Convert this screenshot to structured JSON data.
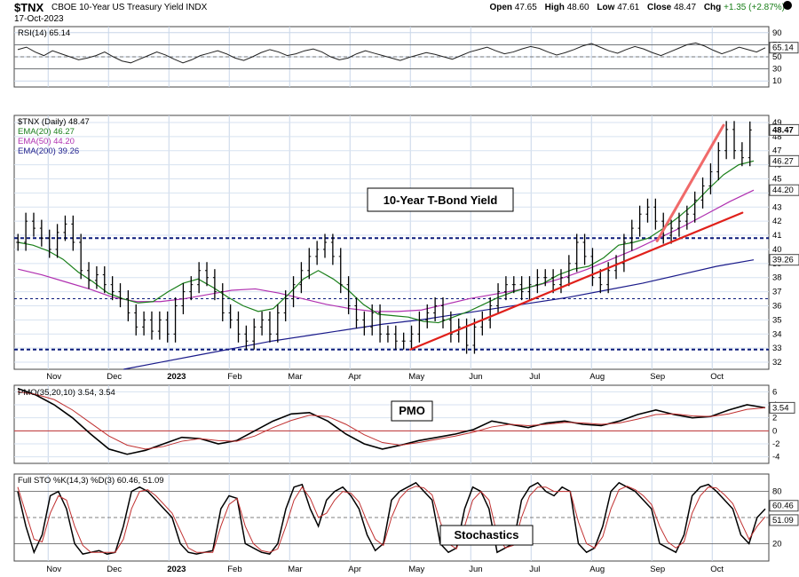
{
  "header": {
    "symbol": "$TNX",
    "description": "CBOE 10-Year US Treasury Yield INDX",
    "date": "17-Oct-2023",
    "open_label": "Open",
    "open": "47.65",
    "high_label": "High",
    "high": "48.60",
    "low_label": "Low",
    "low": "47.61",
    "close_label": "Close",
    "close": "48.47",
    "chg_label": "Chg",
    "chg": "+1.35 (+2.87%)"
  },
  "chart_data": [
    {
      "type": "line",
      "name": "rsi-panel",
      "legend": "RSI(14) 65.14",
      "value_tag": "65.14",
      "yticks": [
        "90",
        "70",
        "50",
        "30",
        "10"
      ],
      "ylim": [
        0,
        100
      ],
      "reference_lines": [
        70,
        50,
        30
      ],
      "values": [
        62,
        66,
        58,
        52,
        60,
        55,
        50,
        45,
        48,
        52,
        58,
        50,
        43,
        40,
        46,
        52,
        58,
        53,
        46,
        40,
        45,
        52,
        56,
        60,
        55,
        48,
        44,
        50,
        57,
        62,
        58,
        52,
        55,
        60,
        63,
        58,
        50,
        45,
        48,
        55,
        60,
        56,
        52,
        48,
        44,
        49,
        53,
        57,
        54,
        50,
        46,
        52,
        58,
        62,
        66,
        60,
        55,
        58,
        63,
        67,
        64,
        58,
        53,
        57,
        62,
        68,
        72,
        66,
        60,
        56,
        62,
        67,
        63,
        57,
        52,
        58,
        64,
        70,
        73,
        68,
        61,
        55,
        60,
        66,
        62,
        58,
        65
      ]
    },
    {
      "type": "candlestick",
      "name": "price-panel",
      "title": "10-Year T-Bond Yield",
      "legend": [
        {
          "label": "$TNX (Daily) 48.47",
          "color": "#000000"
        },
        {
          "label": "EMA(20) 46.27",
          "color": "#1a7f1a"
        },
        {
          "label": "EMA(50) 44.20",
          "color": "#b030b0"
        },
        {
          "label": "EMA(200) 39.26",
          "color": "#1a1a8a"
        }
      ],
      "value_tags": [
        {
          "text": "48.47",
          "y": 48.47,
          "style": "bold"
        },
        {
          "text": "46.27",
          "y": 46.27,
          "style": "normal"
        },
        {
          "text": "44.20",
          "y": 44.2,
          "style": "normal"
        },
        {
          "text": "39.26",
          "y": 39.26,
          "style": "normal"
        }
      ],
      "ylim": [
        31.5,
        49.5
      ],
      "yticks": [
        "49",
        "48",
        "47",
        "46",
        "45",
        "44",
        "43",
        "42",
        "41",
        "40",
        "39",
        "38",
        "37",
        "36",
        "35",
        "34",
        "33",
        "32"
      ],
      "xticks": [
        "Nov",
        "Dec",
        "2023",
        "Feb",
        "Mar",
        "Apr",
        "May",
        "Jun",
        "Jul",
        "Aug",
        "Sep",
        "Oct"
      ],
      "horizontal_lines": [
        {
          "y": 40.8,
          "style": "dashed-heavy"
        },
        {
          "y": 36.5,
          "style": "dashed-light"
        },
        {
          "y": 32.9,
          "style": "dashed-heavy"
        }
      ],
      "trendlines": [
        {
          "from": [
            0.525,
            32.9
          ],
          "to": [
            0.965,
            42.6
          ]
        },
        {
          "from": [
            0.852,
            40.6
          ],
          "to": [
            0.94,
            48.8
          ]
        }
      ],
      "close": [
        40.5,
        42.0,
        41.5,
        40.8,
        40.0,
        41.2,
        41.8,
        40.5,
        38.5,
        37.8,
        38.2,
        37.5,
        37.0,
        36.5,
        35.5,
        34.5,
        35.0,
        34.2,
        35.0,
        34.0,
        36.0,
        37.0,
        37.5,
        38.5,
        38.0,
        37.0,
        35.5,
        35.0,
        34.0,
        33.5,
        34.5,
        35.0,
        34.0,
        35.5,
        36.5,
        37.5,
        38.5,
        39.5,
        40.0,
        40.5,
        39.5,
        37.5,
        36.0,
        35.0,
        34.5,
        35.5,
        34.0,
        34.0,
        33.5,
        33.5,
        34.0,
        35.0,
        35.5,
        36.0,
        35.0,
        34.0,
        34.5,
        33.2,
        34.5,
        35.0,
        36.0,
        37.0,
        37.5,
        37.5,
        37.0,
        37.5,
        38.0,
        38.0,
        37.5,
        38.0,
        39.0,
        40.5,
        39.5,
        38.0,
        37.5,
        38.5,
        39.0,
        40.5,
        41.5,
        42.5,
        43.0,
        42.0,
        41.0,
        41.5,
        42.0,
        42.5,
        43.5,
        44.5,
        45.5,
        47.0,
        48.5,
        47.0,
        46.5,
        48.47
      ],
      "ema20": [
        40.5,
        40.3,
        39.9,
        39.3,
        38.4,
        37.7,
        36.9,
        36.5,
        36.2,
        36.3,
        37.0,
        37.6,
        37.9,
        37.3,
        36.6,
        36.0,
        35.6,
        35.8,
        36.8,
        37.9,
        38.5,
        37.9,
        37.1,
        36.1,
        35.4,
        35.3,
        35.2,
        34.9,
        34.8,
        35.2,
        35.6,
        36.1,
        36.6,
        37.0,
        37.3,
        37.6,
        38.2,
        38.6,
        38.8,
        39.4,
        40.3,
        40.5,
        40.8,
        41.5,
        42.3,
        43.2,
        44.3,
        45.3,
        46.0,
        46.27
      ],
      "ema50": [
        38.6,
        38.2,
        37.7,
        37.2,
        36.6,
        36.3,
        36.3,
        36.5,
        36.8,
        37.1,
        37.2,
        36.9,
        36.5,
        36.1,
        35.8,
        35.6,
        35.6,
        35.7,
        36.1,
        36.5,
        36.8,
        37.1,
        37.5,
        38.0,
        38.6,
        39.3,
        40.0,
        40.8,
        41.6,
        42.5,
        43.4,
        44.2
      ],
      "ema200": [
        31.5,
        32.0,
        32.5,
        33.0,
        33.5,
        33.9,
        34.3,
        34.7,
        35.0,
        35.4,
        35.8,
        36.2,
        36.6,
        37.1,
        37.6,
        38.2,
        38.8,
        39.26
      ]
    },
    {
      "type": "line",
      "name": "pmo-panel",
      "title": "PMO",
      "legend": "PMO(35,20,10) 3.54, 3.54",
      "value_tag": "3.54",
      "yticks": [
        "6",
        "4",
        "2",
        "0",
        "-2",
        "-4"
      ],
      "ylim": [
        -5,
        7
      ],
      "zero_line": 0,
      "series": [
        {
          "name": "PMO",
          "color": "#000000",
          "values": [
            6.5,
            5.5,
            4.0,
            2.0,
            -0.5,
            -2.8,
            -3.6,
            -3.0,
            -2.0,
            -1.0,
            -1.2,
            -2.0,
            -1.5,
            0.0,
            1.5,
            2.6,
            2.8,
            1.5,
            -0.5,
            -2.0,
            -2.8,
            -2.2,
            -1.5,
            -1.0,
            -0.5,
            0.2,
            1.5,
            1.0,
            0.5,
            1.2,
            1.5,
            1.0,
            0.8,
            1.5,
            2.5,
            3.2,
            2.5,
            2.0,
            2.2,
            3.2,
            4.0,
            3.54
          ]
        },
        {
          "name": "Signal",
          "color": "#c03030",
          "values": [
            6.0,
            5.6,
            4.8,
            3.2,
            1.2,
            -0.8,
            -2.2,
            -2.8,
            -2.4,
            -1.6,
            -1.2,
            -1.5,
            -1.6,
            -0.8,
            0.5,
            1.6,
            2.4,
            2.2,
            1.0,
            -0.6,
            -1.8,
            -2.2,
            -1.8,
            -1.3,
            -0.8,
            -0.2,
            0.6,
            1.0,
            0.8,
            1.0,
            1.3,
            1.2,
            1.0,
            1.2,
            1.8,
            2.5,
            2.6,
            2.3,
            2.2,
            2.6,
            3.3,
            3.54
          ]
        }
      ]
    },
    {
      "type": "line",
      "name": "stochastics-panel",
      "title": "Stochastics",
      "legend": "Full STO %K(14,3) %D(3) 60.46, 51.09",
      "value_tags": [
        "60.46",
        "51.09"
      ],
      "yticks": [
        "80",
        "50",
        "20"
      ],
      "ylim": [
        0,
        100
      ],
      "reference_lines": [
        80,
        50,
        20
      ],
      "series": [
        {
          "name": "%K",
          "color": "#000000",
          "values": [
            80,
            40,
            10,
            30,
            75,
            80,
            60,
            20,
            8,
            10,
            12,
            8,
            10,
            40,
            80,
            85,
            80,
            70,
            60,
            50,
            20,
            10,
            8,
            10,
            12,
            60,
            75,
            72,
            20,
            15,
            10,
            8,
            20,
            60,
            85,
            88,
            60,
            40,
            70,
            80,
            85,
            75,
            60,
            30,
            12,
            20,
            70,
            80,
            85,
            90,
            80,
            70,
            20,
            10,
            15,
            60,
            85,
            80,
            60,
            10,
            15,
            20,
            70,
            85,
            90,
            80,
            75,
            85,
            80,
            20,
            10,
            15,
            40,
            80,
            90,
            85,
            80,
            70,
            60,
            20,
            15,
            10,
            30,
            75,
            85,
            88,
            80,
            70,
            60,
            30,
            20,
            50,
            60
          ]
        },
        {
          "name": "%D",
          "color": "#c03030",
          "values": [
            85,
            55,
            25,
            22,
            55,
            75,
            70,
            40,
            18,
            10,
            10,
            10,
            10,
            25,
            60,
            80,
            82,
            75,
            65,
            55,
            35,
            15,
            10,
            10,
            10,
            40,
            65,
            72,
            40,
            20,
            12,
            10,
            14,
            40,
            70,
            85,
            72,
            50,
            55,
            70,
            80,
            78,
            68,
            45,
            25,
            18,
            50,
            72,
            82,
            86,
            84,
            76,
            45,
            20,
            14,
            40,
            70,
            80,
            70,
            30,
            15,
            18,
            50,
            75,
            85,
            85,
            80,
            80,
            80,
            45,
            20,
            15,
            28,
            60,
            82,
            86,
            82,
            75,
            65,
            40,
            22,
            15,
            22,
            55,
            75,
            85,
            84,
            76,
            66,
            45,
            25,
            40,
            51
          ]
        }
      ]
    }
  ]
}
